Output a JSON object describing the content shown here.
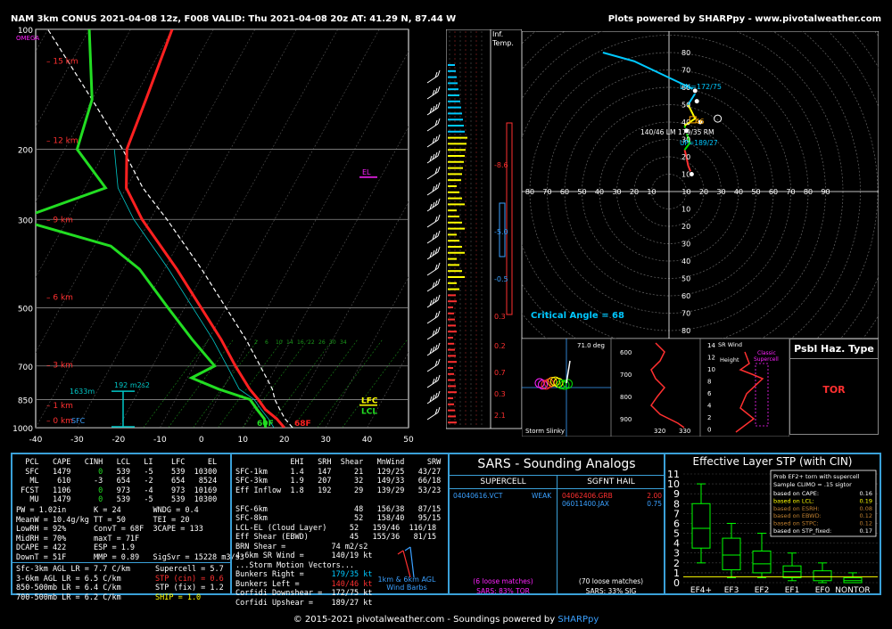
{
  "header": {
    "title": "NAM 3km CONUS 2021-04-08 12z, F008  VALID: Thu 2021-04-08 20z  AT: 41.29 N, 87.44 W",
    "credit": "Plots powered by SHARPpy - www.pivotalweather.com"
  },
  "footer": {
    "text": "© 2015-2021 pivotalweather.com - Soundings powered by ",
    "brand": "SHARPpy"
  },
  "colors": {
    "panel_border": "#3aa0d8",
    "temp": "#ff2020",
    "dewp": "#22dd22",
    "parcel": "#ffffff",
    "wetbulb": "#00c8c8",
    "magenta": "#ff22ff",
    "yellow": "#ffff00",
    "cyan": "#00c8ff"
  },
  "skewt": {
    "pressure_levels": [
      100,
      200,
      300,
      500,
      700,
      850,
      1000
    ],
    "temp_ticks": [
      "-40",
      "-30",
      "-20",
      "-10",
      "0",
      "10",
      "20",
      "30",
      "40",
      "50"
    ],
    "height_labels": [
      "15 km",
      "12 km",
      "9 km",
      "6 km",
      "3 km",
      "1 km",
      "0 km"
    ],
    "omega": "OMEGA",
    "sfc": "SFC",
    "el": "EL",
    "lfc": "LFC",
    "lcl": "LCL",
    "sfc_temp": "68F",
    "sfc_dewp": "60F",
    "hgt_1633": "1633m",
    "srh": "192 m2s2",
    "mixing_ratios": [
      "2",
      "6",
      "10",
      "14",
      "16",
      "22",
      "26",
      "30",
      "34"
    ]
  },
  "chart_data": {
    "type": "line",
    "title": "",
    "series": [
      {
        "name": "",
        "note": "temperature C vs pressure hPa",
        "points": [
          [
            1000,
            20
          ],
          [
            950,
            17
          ],
          [
            900,
            13
          ],
          [
            850,
            10
          ],
          [
            800,
            6.5
          ],
          [
            700,
            0
          ],
          [
            600,
            -7
          ],
          [
            500,
            -16
          ],
          [
            400,
            -27
          ],
          [
            300,
            -42
          ],
          [
            250,
            -50
          ],
          [
            200,
            -55
          ],
          [
            150,
            -57
          ],
          [
            100,
            -60
          ]
        ]
      },
      {
        "name": "",
        "note": "dewpoint C vs pressure hPa",
        "points": [
          [
            1000,
            15.5
          ],
          [
            950,
            14
          ],
          [
            900,
            11
          ],
          [
            850,
            8
          ],
          [
            800,
            -1
          ],
          [
            750,
            -9
          ],
          [
            700,
            -5
          ],
          [
            600,
            -14
          ],
          [
            500,
            -24
          ],
          [
            400,
            -36
          ],
          [
            350,
            -46
          ],
          [
            300,
            -72
          ],
          [
            250,
            -55
          ],
          [
            200,
            -67
          ],
          [
            150,
            -70
          ],
          [
            100,
            -80
          ]
        ]
      }
    ],
    "xlim": [
      -40,
      50
    ],
    "ylim": [
      1000,
      100
    ]
  },
  "infl": {
    "label1": "Inf.",
    "label2": "Temp.",
    "values": [
      "-8.6",
      "-5.0",
      "-0.5",
      "0.3",
      "0.2",
      "0.7",
      "0.3",
      "2.1"
    ]
  },
  "hodo": {
    "rings": [
      "80",
      "70",
      "60",
      "50",
      "40",
      "30",
      "20",
      "10"
    ],
    "xticks": [
      "90",
      "80",
      "70",
      "60",
      "50",
      "40",
      "30",
      "20",
      "10",
      "10",
      "20",
      "30",
      "40",
      "50",
      "60",
      "70",
      "80",
      "90"
    ],
    "yticks_neg": [
      "10",
      "20",
      "30",
      "40",
      "50",
      "60",
      "70",
      "80"
    ],
    "dn": "DN=172/75",
    "rm": "179/35 RM",
    "lm": "140/46 LM",
    "up": "UP=189/27",
    "crit": "Critical Angle = 68",
    "val46": "46"
  },
  "slinky": {
    "angle": "71.0 deg",
    "label": "Storm Slinky"
  },
  "theta": {
    "plevels": [
      "600",
      "700",
      "800",
      "900"
    ],
    "xticks": [
      "320",
      "330"
    ]
  },
  "srwind": {
    "title": "SR Wind",
    "ylabel": "Height",
    "classic": "Classic Supercell",
    "yticks": [
      "14",
      "12",
      "10",
      "8",
      "6",
      "4",
      "2",
      "0"
    ]
  },
  "haz": {
    "title": "Psbl Haz. Type",
    "value": "TOR"
  },
  "parcel_table": {
    "headers": [
      "PCL",
      "CAPE",
      "CINH",
      "LCL",
      "LI",
      "LFC",
      "EL"
    ],
    "rows": [
      [
        "SFC",
        "1479",
        "0",
        "539",
        "-5",
        "539",
        "10300"
      ],
      [
        "ML",
        "610",
        "-3",
        "654",
        "-2",
        "654",
        "8524"
      ],
      [
        "FCST",
        "1106",
        "0",
        "973",
        "-4",
        "973",
        "10169"
      ],
      [
        "MU",
        "1479",
        "0",
        "539",
        "-5",
        "539",
        "10300"
      ]
    ]
  },
  "thermo": [
    [
      "PW = 1.02in",
      "K = 24",
      "WNDG = 0.4"
    ],
    [
      "MeanW = 10.4g/kg",
      "TT = 50",
      "TEI = 20"
    ],
    [
      "LowRH = 92%",
      "ConvT = 68F",
      "3CAPE = 133"
    ],
    [
      "MidRH = 70%",
      "maxT = 71F",
      ""
    ],
    [
      "DCAPE = 422",
      "ESP = 1.9",
      ""
    ],
    [
      "DownT = 51F",
      "MMP = 0.89",
      "SigSvr = 15228 m3/s3"
    ]
  ],
  "lapse": [
    "Sfc-3km AGL LR = 7.7 C/km",
    "3-6km AGL LR = 6.5 C/km",
    "850-500mb LR = 6.4 C/km",
    "700-500mb LR = 6.2 C/km"
  ],
  "comp": [
    {
      "t": "Supercell = 5.7",
      "c": "#ffffff"
    },
    {
      "t": "STP (cin) = 0.6",
      "c": "#ff3030"
    },
    {
      "t": "STP (fix) = 1.2",
      "c": "#ffffff"
    },
    {
      "t": "SHIP = 1.0",
      "c": "#ffff00"
    }
  ],
  "kin": {
    "headers": [
      "EHI",
      "SRH",
      "Shear",
      "MnWind",
      "SRW"
    ],
    "rows": [
      [
        "SFC-1km",
        "1.4",
        "147",
        "21",
        "129/25",
        "43/27"
      ],
      [
        "SFC-3km",
        "1.9",
        "207",
        "32",
        "149/33",
        "66/18"
      ],
      [
        "Eff Inflow",
        "1.8",
        "192",
        "29",
        "139/29",
        "53/23"
      ],
      [
        "",
        "",
        "",
        "",
        "",
        ""
      ],
      [
        "SFC-6km",
        "",
        "",
        "48",
        "156/38",
        "87/15"
      ],
      [
        "SFC-8km",
        "",
        "",
        "52",
        "158/40",
        "95/15"
      ],
      [
        "LCL-EL (Cloud Layer)",
        "",
        "",
        "52",
        "159/46",
        "116/18"
      ],
      [
        "Eff Shear (EBWD)",
        "",
        "",
        "45",
        "155/36",
        "81/15"
      ]
    ],
    "brn": "BRN Shear =",
    "brn_v": "74 m2/s2",
    "srw46": "4-6km SR Wind =",
    "srw46_v": "140/19 kt",
    "motion_title": "...Storm Motion Vectors...",
    "motion": [
      {
        "k": "Bunkers Right =",
        "v": "179/35 kt",
        "c": "#00c8ff"
      },
      {
        "k": "Bunkers Left =",
        "v": "140/46 kt",
        "c": "#ff3030"
      },
      {
        "k": "Corfidi Downshear =",
        "v": "172/75 kt",
        "c": "#ffffff"
      },
      {
        "k": "Corfidi Upshear =",
        "v": "189/27 kt",
        "c": "#ffffff"
      }
    ],
    "barb_label1": "1km & 6km AGL",
    "barb_label2": "Wind Barbs"
  },
  "sars": {
    "title": "SARS - Sounding Analogs",
    "super": "SUPERCELL",
    "sgfnt": "SGFNT HAIL",
    "super_match": "04040616.VCT",
    "super_val": "WEAK",
    "hail": [
      {
        "m": "04062406.GRB",
        "v": "2.00",
        "c": "#ff3030"
      },
      {
        "m": "06011400.JAX",
        "v": "0.75",
        "c": "#3aa0ff"
      }
    ],
    "loose1": "(6 loose matches)",
    "loose2": "(70 loose matches)",
    "pct1": "SARS: 83% TOR",
    "pct2": "SARS: 33% SIG"
  },
  "stp": {
    "title": "Effective Layer STP (with CIN)",
    "yticks": [
      "0",
      "1",
      "2",
      "3",
      "4",
      "5",
      "6",
      "7",
      "8",
      "9",
      "10",
      "11"
    ],
    "cats": [
      "EF4+",
      "EF3",
      "EF2",
      "EF1",
      "EF0",
      "NONTOR"
    ],
    "boxes": [
      [
        2,
        3.5,
        5.5,
        8,
        10
      ],
      [
        0.5,
        1.3,
        2.8,
        4.5,
        6
      ],
      [
        0.5,
        1.0,
        1.9,
        3.2,
        5.0
      ],
      [
        0.2,
        0.5,
        1.1,
        1.7,
        3.0
      ],
      [
        0,
        0.2,
        0.6,
        1.2,
        2.0
      ],
      [
        0,
        0,
        0.2,
        0.5,
        1.0
      ]
    ],
    "prob_title": "Prob EF2+ torn with supercell",
    "prob_sub": "Sample CLIMO = .15 sigtor",
    "prob": [
      {
        "k": "based on CAPE:",
        "v": "0.16",
        "c": "#ffffff"
      },
      {
        "k": "based on LCL:",
        "v": "0.19",
        "c": "#ffff00"
      },
      {
        "k": "based on ESRH:",
        "v": "0.08",
        "c": "#c08030"
      },
      {
        "k": "based on EBWD:",
        "v": "0.12",
        "c": "#c08030"
      },
      {
        "k": "based on STPC:",
        "v": "0.12",
        "c": "#c08030"
      },
      {
        "k": "based on STP_fixed:",
        "v": "0.17",
        "c": "#ffffff"
      }
    ],
    "stp_value": 0.6
  }
}
